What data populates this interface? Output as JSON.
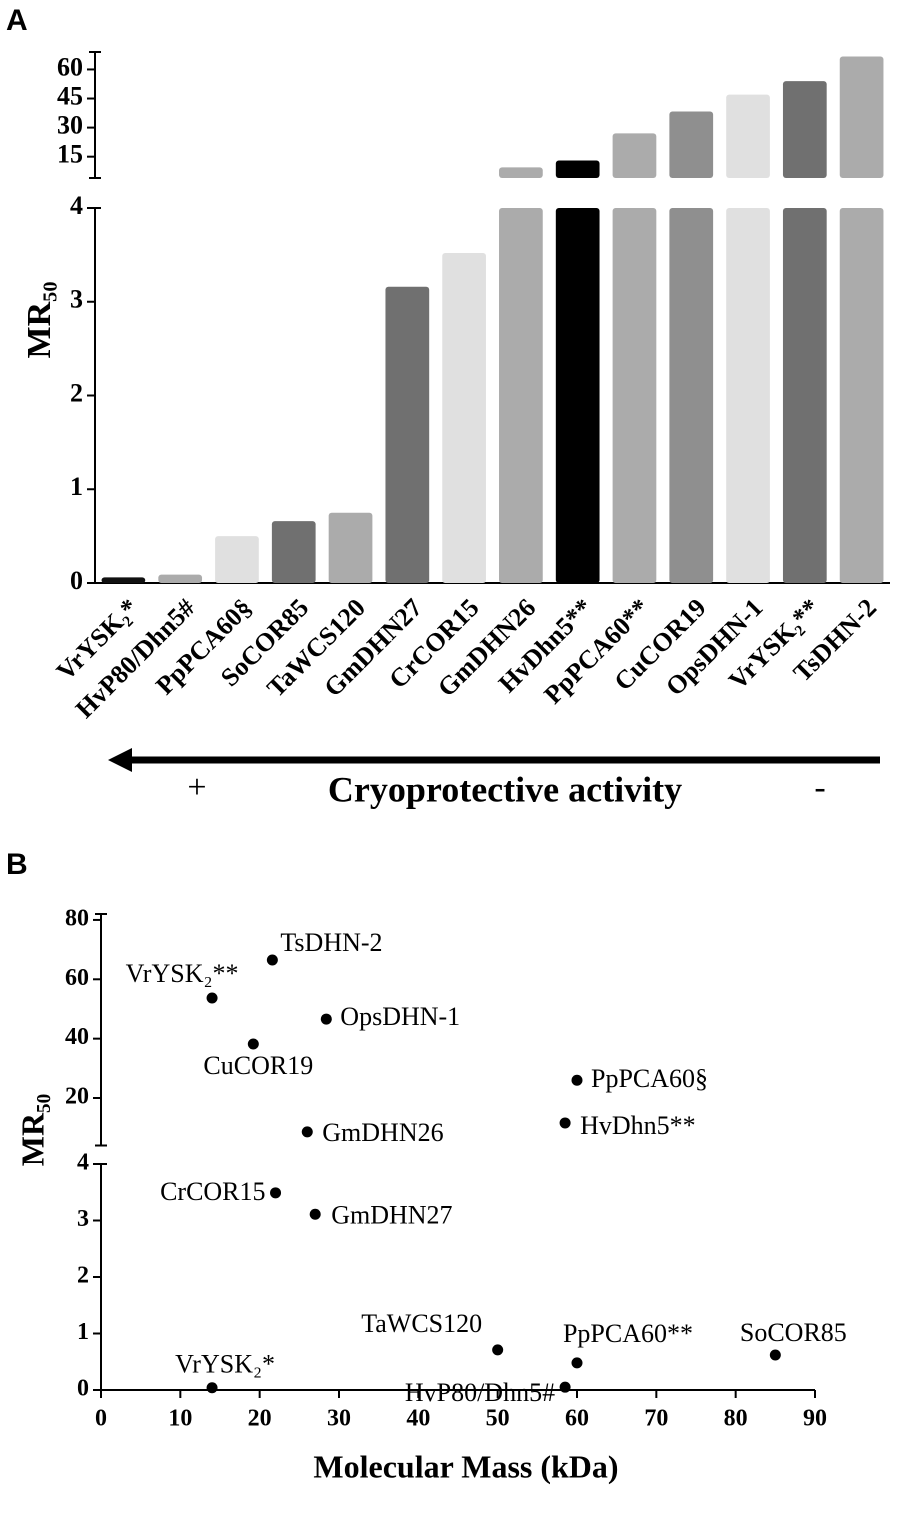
{
  "chart_data": [
    {
      "type": "bar",
      "panel_label": "A",
      "ylabel": "MR₅₀",
      "categories": [
        "VrYSK₂*",
        "HvP80/Dhn5#",
        "PpPCA60§",
        "SoCOR85",
        "TaWCS120",
        "GmDHN27",
        "CrCOR15",
        "GmDHN26",
        "HvDhn5**",
        "PpPCA60**",
        "CuCOR19",
        "OpsDHN-1",
        "VrYSK₂**",
        "TsDHN-2"
      ],
      "values": [
        0.06,
        0.09,
        0.5,
        0.66,
        0.75,
        3.16,
        3.52,
        9.5,
        13,
        27,
        38.3,
        47,
        54,
        66.7
      ],
      "colors": [
        "#111111",
        "#ababab",
        "#e0e0e0",
        "#707070",
        "#ababab",
        "#707070",
        "#e0e0e0",
        "#ababab",
        "#000000",
        "#ababab",
        "#8f8f8f",
        "#e0e0e0",
        "#707070",
        "#ababab"
      ],
      "y_segments": [
        {
          "ylim": [
            0,
            4
          ],
          "yticks": [
            0,
            1,
            2,
            3,
            4
          ]
        },
        {
          "ylim": [
            4,
            69
          ],
          "yticks": [
            15,
            30,
            45,
            60
          ]
        }
      ],
      "annotation": {
        "left": "+",
        "text": "Cryoprotective activity",
        "right": "-"
      }
    },
    {
      "type": "scatter",
      "panel_label": "B",
      "xlabel": "Molecular Mass (kDa)",
      "ylabel": "MR₅₀",
      "color": "#000000",
      "x": [
        14,
        58.5,
        60,
        85,
        50,
        27,
        22,
        26,
        58.5,
        60,
        19.2,
        28.4,
        14,
        21.6
      ],
      "values": [
        0.04,
        0.05,
        0.48,
        0.62,
        0.71,
        3.11,
        3.49,
        8.6,
        11.6,
        26,
        38.2,
        46.6,
        53.7,
        66.5
      ],
      "point_labels": [
        "VrYSK₂*",
        "HvP80/Dhn5#",
        "PpPCA60**",
        "SoCOR85",
        "TaWCS120",
        "GmDHN27",
        "CrCOR15",
        "GmDHN26",
        "HvDhn5**",
        "PpPCA60§",
        "CuCOR19",
        "OpsDHN-1",
        "VrYSK₂**",
        "TsDHN-2"
      ],
      "xlim": [
        0,
        90
      ],
      "xticks": [
        0,
        10,
        20,
        30,
        40,
        50,
        60,
        70,
        80,
        90
      ],
      "y_segments": [
        {
          "ylim": [
            0,
            4
          ],
          "yticks": [
            0,
            1,
            2,
            3,
            4
          ]
        },
        {
          "ylim": [
            4,
            82
          ],
          "yticks": [
            20,
            40,
            60,
            80
          ]
        }
      ]
    }
  ]
}
